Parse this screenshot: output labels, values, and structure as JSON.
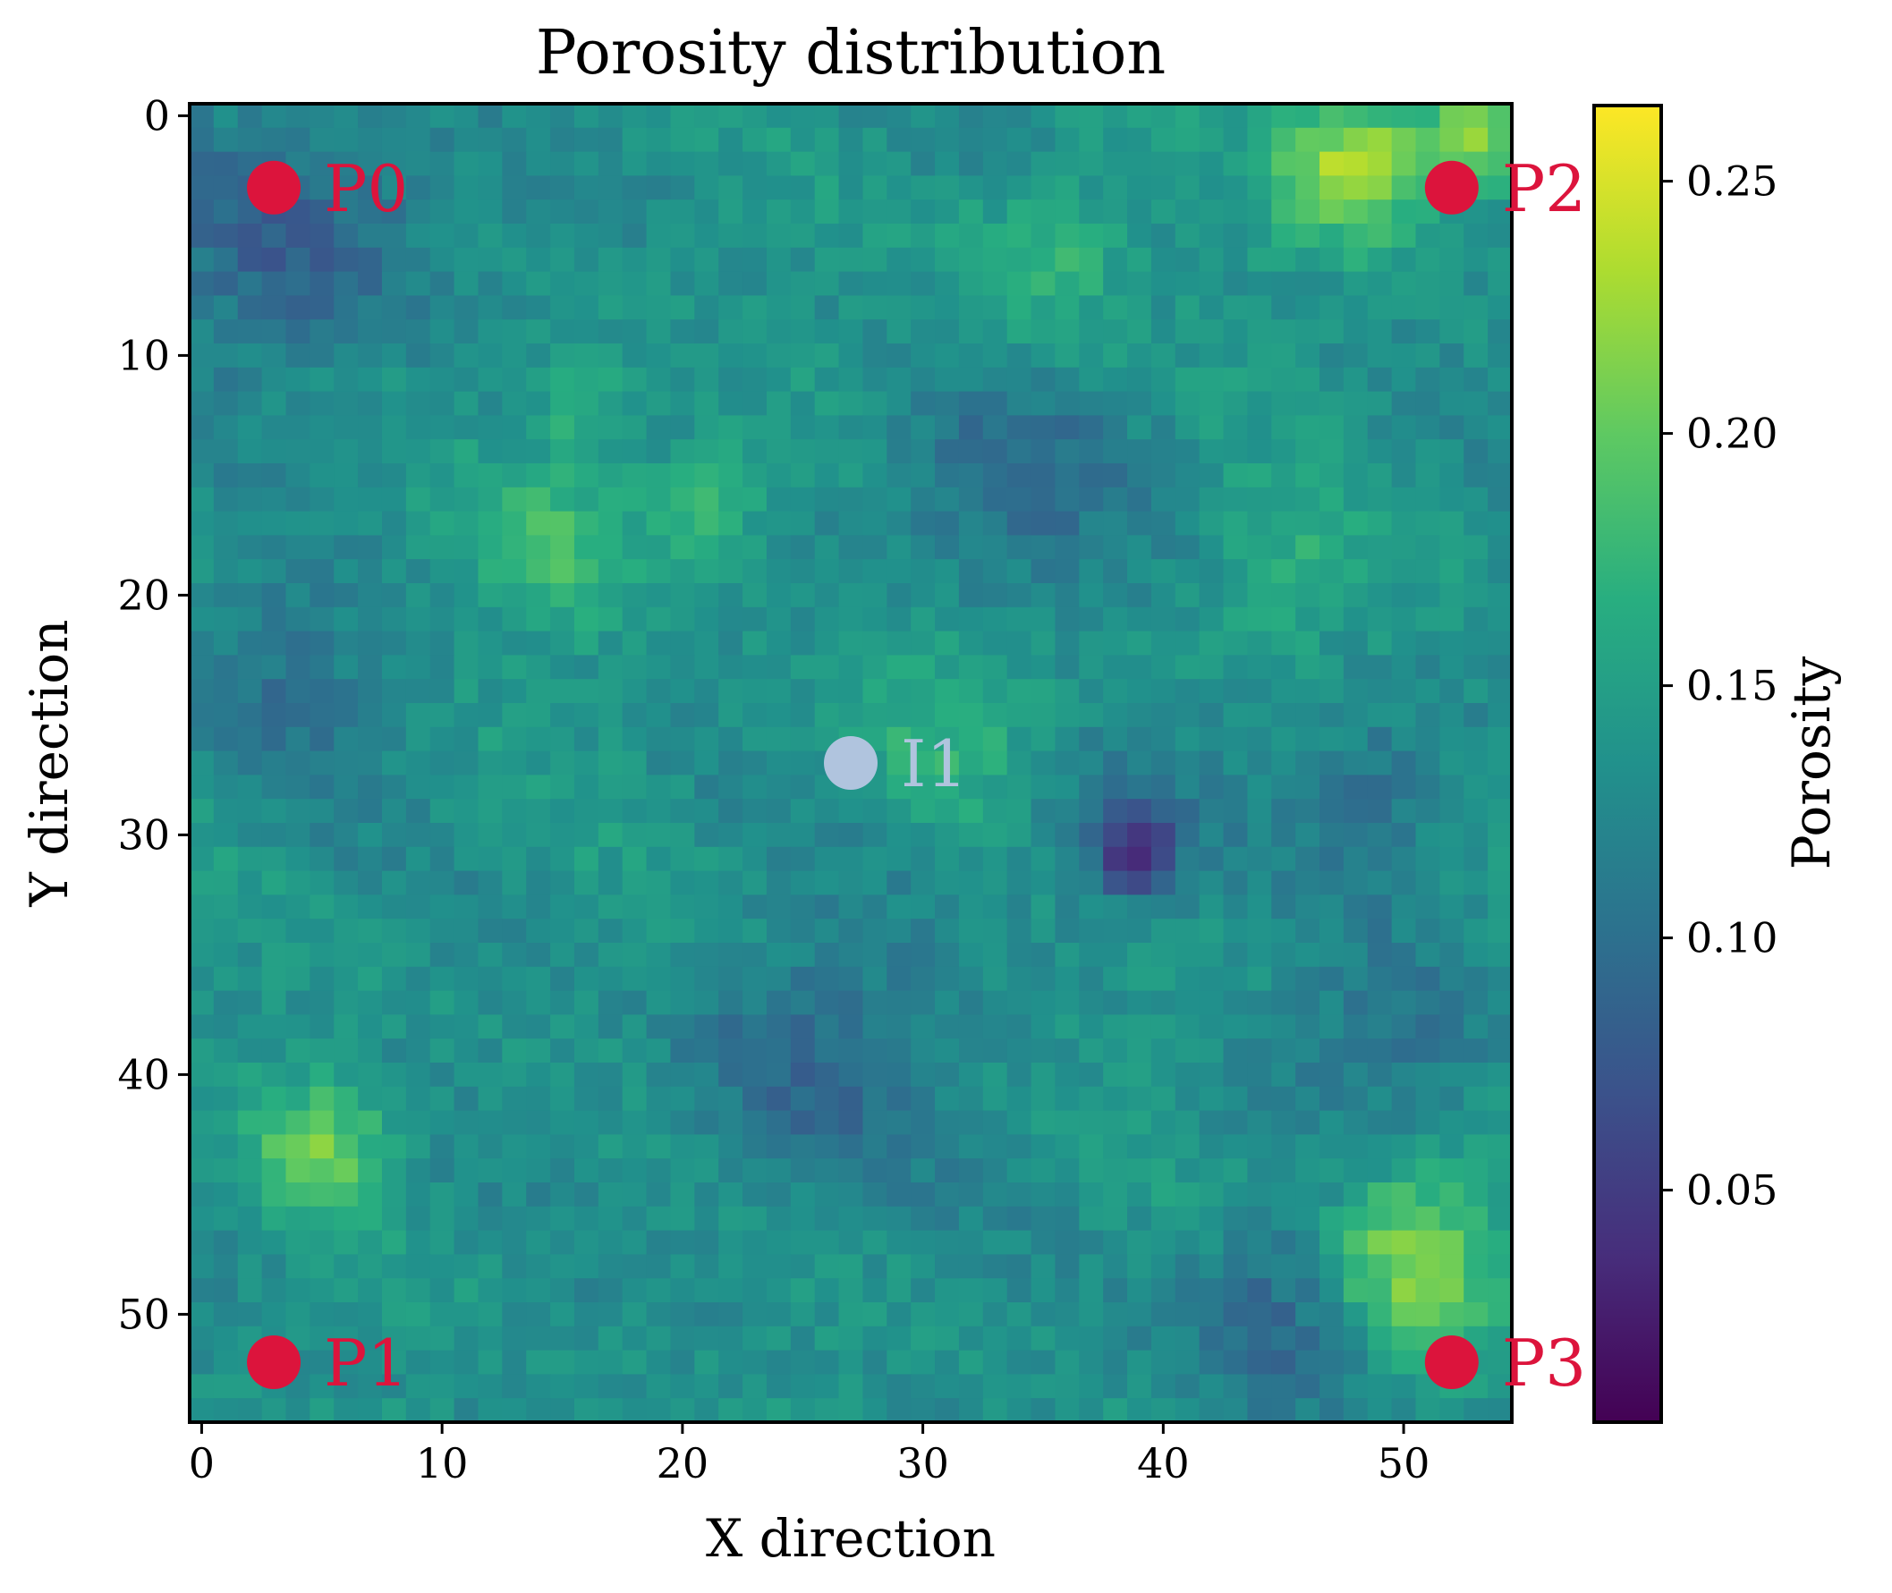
{
  "chart_data": {
    "type": "heatmap",
    "title": "Porosity distribution",
    "xlabel": "X direction",
    "ylabel": "Y direction",
    "grid_size": [
      55,
      55
    ],
    "xlim": [
      -0.5,
      54.5
    ],
    "ylim": [
      54.5,
      -0.5
    ],
    "xticks": [
      0,
      10,
      20,
      30,
      40,
      50
    ],
    "yticks": [
      0,
      10,
      20,
      30,
      40,
      50
    ],
    "colorbar": {
      "label": "Porosity",
      "range": [
        0.004,
        0.265
      ],
      "ticks": [
        0.05,
        0.1,
        0.15,
        0.2,
        0.25
      ],
      "tick_labels": [
        "0.05",
        "0.10",
        "0.15",
        "0.20",
        "0.25"
      ],
      "colormap": "viridis"
    },
    "wells": [
      {
        "label": "P0",
        "x": 3,
        "y": 3,
        "color": "#dc143c",
        "label_color": "#dc143c"
      },
      {
        "label": "P1",
        "x": 3,
        "y": 52,
        "color": "#dc143c",
        "label_color": "#dc143c"
      },
      {
        "label": "P2",
        "x": 52,
        "y": 3,
        "color": "#dc143c",
        "label_color": "#dc143c"
      },
      {
        "label": "P3",
        "x": 52,
        "y": 52,
        "color": "#dc143c",
        "label_color": "#dc143c"
      },
      {
        "label": "I1",
        "x": 27,
        "y": 27,
        "color": "#b0c4de",
        "label_color": "#b0c4de"
      }
    ],
    "porosity_field": {
      "mean": 0.135,
      "features": [
        {
          "x": 48,
          "y": 2,
          "sigma": 2.2,
          "amplitude": 0.1
        },
        {
          "x": 53,
          "y": 1,
          "sigma": 1.5,
          "amplitude": 0.09
        },
        {
          "x": 5,
          "y": 43,
          "sigma": 1.8,
          "amplitude": 0.07
        },
        {
          "x": 21,
          "y": 16,
          "sigma": 1.8,
          "amplitude": 0.05
        },
        {
          "x": 15,
          "y": 18,
          "sigma": 2.5,
          "amplitude": 0.04
        },
        {
          "x": 16,
          "y": 12,
          "sigma": 1.5,
          "amplitude": 0.04
        },
        {
          "x": 50,
          "y": 47,
          "sigma": 2.5,
          "amplitude": 0.06
        },
        {
          "x": 51,
          "y": 49,
          "sigma": 2.5,
          "amplitude": 0.05
        },
        {
          "x": 45,
          "y": 19,
          "sigma": 2.5,
          "amplitude": 0.03
        },
        {
          "x": 35,
          "y": 6,
          "sigma": 2.5,
          "amplitude": 0.04
        },
        {
          "x": 31,
          "y": 25,
          "sigma": 3,
          "amplitude": 0.03
        },
        {
          "x": 4,
          "y": 5,
          "sigma": 4,
          "amplitude": -0.05
        },
        {
          "x": 3,
          "y": 24,
          "sigma": 3,
          "amplitude": -0.03
        },
        {
          "x": 33,
          "y": 16,
          "sigma": 3.5,
          "amplitude": -0.04
        },
        {
          "x": 25,
          "y": 40,
          "sigma": 4,
          "amplitude": -0.04
        },
        {
          "x": 45,
          "y": 50,
          "sigma": 3,
          "amplitude": -0.05
        },
        {
          "x": 38,
          "y": 30,
          "sigma": 2.5,
          "amplitude": -0.04
        },
        {
          "x": 39,
          "y": 31,
          "sigma": 1.0,
          "amplitude": -0.08
        },
        {
          "x": 49,
          "y": 28,
          "sigma": 2.5,
          "amplitude": -0.035
        },
        {
          "x": 50,
          "y": 38,
          "sigma": 3,
          "amplitude": -0.03
        }
      ]
    }
  }
}
